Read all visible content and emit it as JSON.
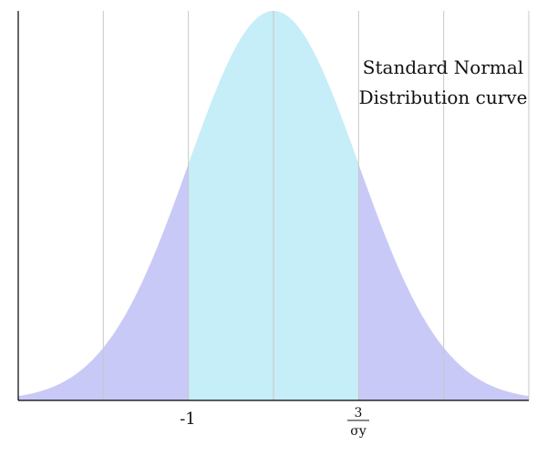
{
  "chart_data": {
    "type": "area",
    "title_lines": [
      "Standard Normal",
      "Distribution curve"
    ],
    "xlabel": "",
    "ylabel": "",
    "xlim": [
      -3,
      3
    ],
    "ylim": [
      0,
      0.4
    ],
    "grid": true,
    "gridlines_x": [
      -3,
      -2,
      -1,
      0,
      1,
      2,
      3
    ],
    "tick_labels": [
      {
        "x": -1,
        "text": "-1"
      },
      {
        "x": 1,
        "numerator": "3",
        "denominator": "σy"
      }
    ],
    "series": [
      {
        "function": "standard-normal-density",
        "x_range": [
          -3,
          3
        ],
        "fill": "#c9c9f7"
      },
      {
        "function": "standard-normal-density",
        "x_range": [
          -1,
          1
        ],
        "fill": "#c6eef8"
      }
    ],
    "colors": {
      "tails_fill": "#c9c9f7",
      "center_fill": "#c6eef8",
      "grid": "#c8c8c8",
      "axis": "#000000"
    }
  }
}
